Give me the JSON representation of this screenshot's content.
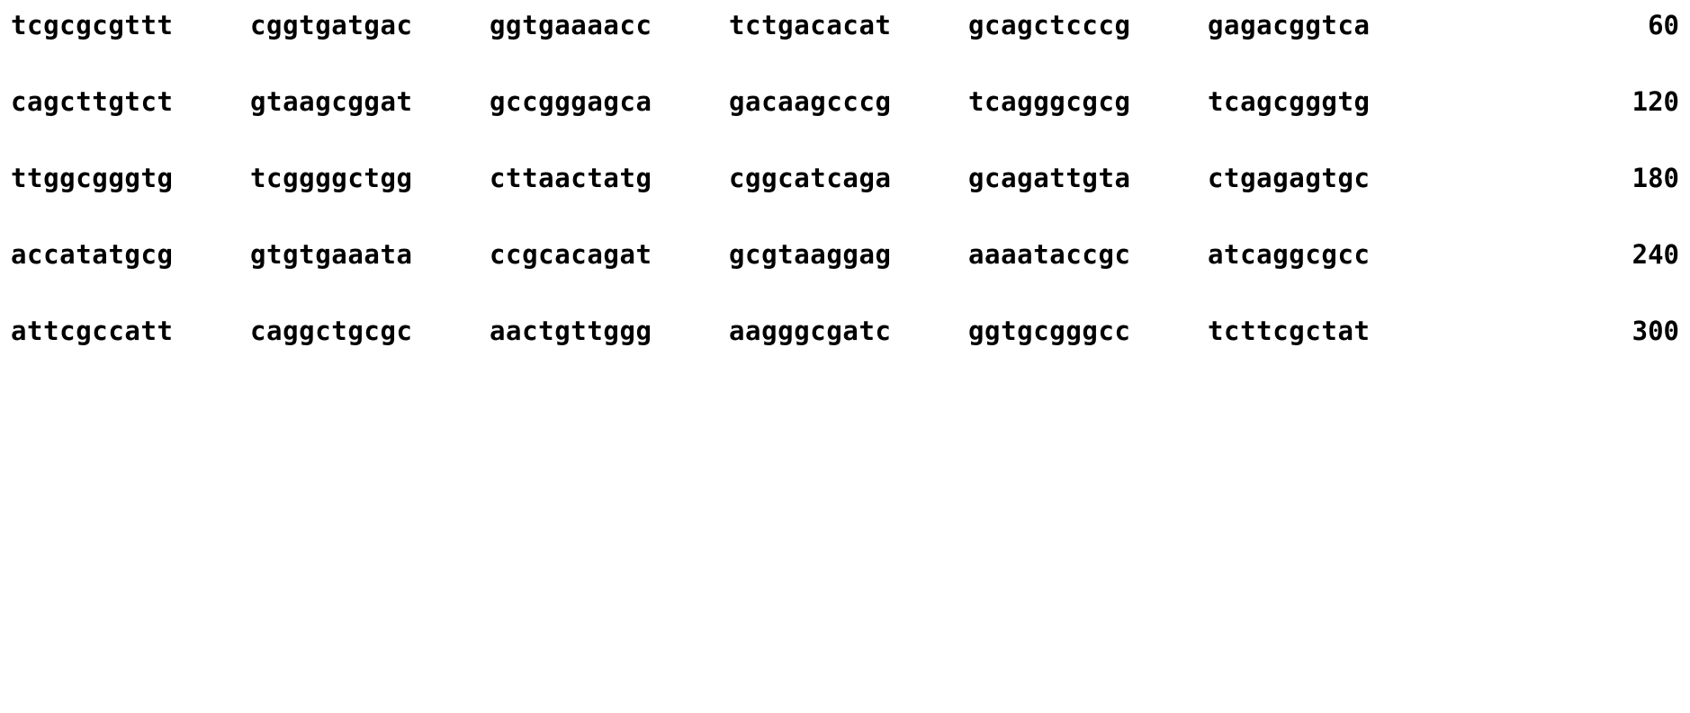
{
  "sequence": {
    "lines": [
      {
        "groups": [
          "tcgcgcgttt",
          "cggtgatgac",
          "ggtgaaaacc",
          "tctgacacat",
          "gcagctcccg",
          "gagacggtca"
        ],
        "position": "60"
      },
      {
        "groups": [
          "cagcttgtct",
          "gtaagcggat",
          "gccgggagca",
          "gacaagcccg",
          "tcagggcgcg",
          "tcagcgggtg"
        ],
        "position": "120"
      },
      {
        "groups": [
          "ttggcgggtg",
          "tcggggctgg",
          "cttaactatg",
          "cggcatcaga",
          "gcagattgta",
          "ctgagagtgc"
        ],
        "position": "180"
      },
      {
        "groups": [
          "accatatgcg",
          "gtgtgaaata",
          "ccgcacagat",
          "gcgtaaggag",
          "aaaataccgc",
          "atcaggcgcc"
        ],
        "position": "240"
      },
      {
        "groups": [
          "attcgccatt",
          "caggctgcgc",
          "aactgttggg",
          "aagggcgatc",
          "ggtgcgggcc",
          "tcttcgctat"
        ],
        "position": "300"
      }
    ]
  }
}
